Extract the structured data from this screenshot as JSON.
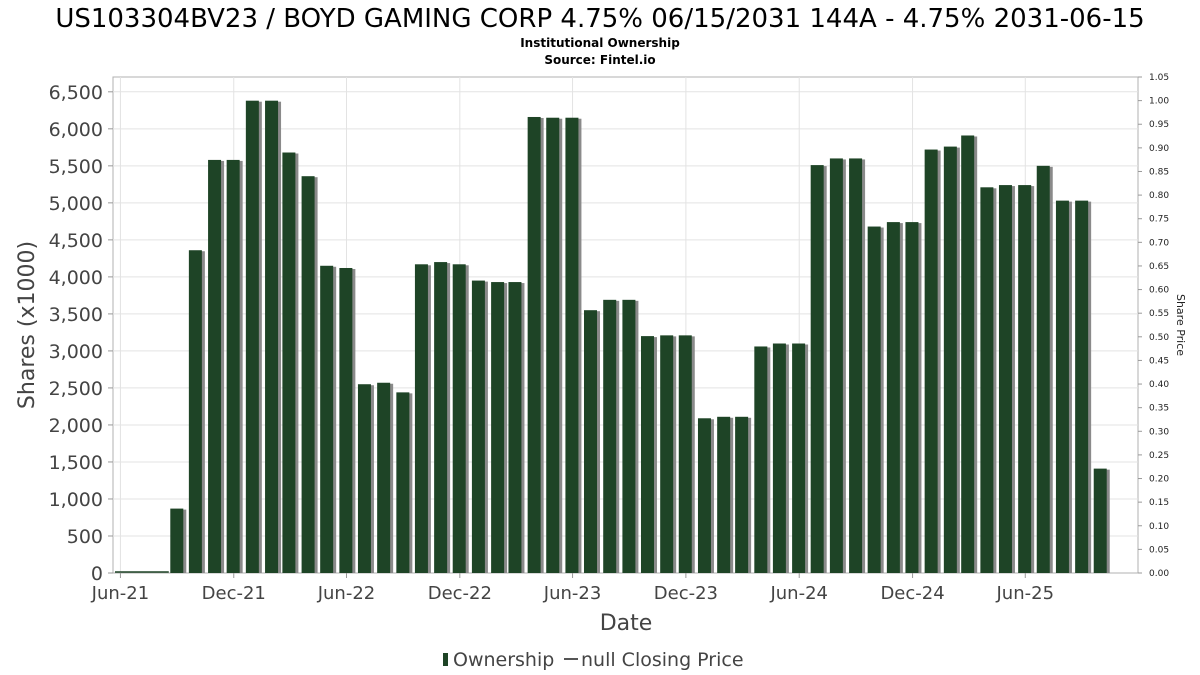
{
  "chart_data": {
    "type": "bar",
    "title": "US103304BV23 / BOYD GAMING CORP 4.75% 06/15/2031 144A - 4.75% 2031-06-15",
    "subtitle": "Institutional Ownership",
    "source": "Source: Fintel.io",
    "xlabel": "Date",
    "ylabel": "Shares (x1000)",
    "y2label": "Share Price",
    "ylim": [
      0,
      6700
    ],
    "y2lim": [
      0,
      1.05
    ],
    "yticks": [
      "0",
      "500",
      "1,000",
      "1,500",
      "2,000",
      "2,500",
      "3,000",
      "3,500",
      "4,000",
      "4,500",
      "5,000",
      "5,500",
      "6,000",
      "6,500"
    ],
    "ytick_values": [
      0,
      500,
      1000,
      1500,
      2000,
      2500,
      3000,
      3500,
      4000,
      4500,
      5000,
      5500,
      6000,
      6500
    ],
    "y2ticks": [
      "0.00",
      "0.05",
      "0.10",
      "0.15",
      "0.20",
      "0.25",
      "0.30",
      "0.35",
      "0.40",
      "0.45",
      "0.50",
      "0.55",
      "0.60",
      "0.65",
      "0.70",
      "0.75",
      "0.80",
      "0.85",
      "0.90",
      "0.95",
      "1.00",
      "1.05"
    ],
    "xlim": [
      "2021-05-20",
      "2025-11-30"
    ],
    "xticks": [
      {
        "label": "Jun-21",
        "date": "2021-06-01"
      },
      {
        "label": "Dec-21",
        "date": "2021-12-01"
      },
      {
        "label": "Jun-22",
        "date": "2022-06-01"
      },
      {
        "label": "Dec-22",
        "date": "2022-12-01"
      },
      {
        "label": "Jun-23",
        "date": "2023-06-01"
      },
      {
        "label": "Dec-23",
        "date": "2023-12-01"
      },
      {
        "label": "Jun-24",
        "date": "2024-06-01"
      },
      {
        "label": "Dec-24",
        "date": "2024-12-01"
      },
      {
        "label": "Jun-25",
        "date": "2025-06-01"
      }
    ],
    "grid": true,
    "legend_position": "bottom",
    "series": [
      {
        "name": "Ownership",
        "color": "#1e4426",
        "shadow_color": "#8a8a8a",
        "points": [
          {
            "x": "2021-08-31",
            "y": 870
          },
          {
            "x": "2021-09-30",
            "y": 4360
          },
          {
            "x": "2021-10-31",
            "y": 5580
          },
          {
            "x": "2021-11-30",
            "y": 5580
          },
          {
            "x": "2021-12-31",
            "y": 6380
          },
          {
            "x": "2022-01-31",
            "y": 6380
          },
          {
            "x": "2022-02-28",
            "y": 5680
          },
          {
            "x": "2022-03-31",
            "y": 5360
          },
          {
            "x": "2022-04-30",
            "y": 4150
          },
          {
            "x": "2022-05-31",
            "y": 4120
          },
          {
            "x": "2022-06-30",
            "y": 2550
          },
          {
            "x": "2022-07-31",
            "y": 2570
          },
          {
            "x": "2022-08-31",
            "y": 2440
          },
          {
            "x": "2022-09-30",
            "y": 4170
          },
          {
            "x": "2022-10-31",
            "y": 4200
          },
          {
            "x": "2022-11-30",
            "y": 4170
          },
          {
            "x": "2022-12-31",
            "y": 3950
          },
          {
            "x": "2023-01-31",
            "y": 3930
          },
          {
            "x": "2023-02-28",
            "y": 3930
          },
          {
            "x": "2023-03-31",
            "y": 6160
          },
          {
            "x": "2023-04-30",
            "y": 6150
          },
          {
            "x": "2023-05-31",
            "y": 6150
          },
          {
            "x": "2023-06-30",
            "y": 3550
          },
          {
            "x": "2023-07-31",
            "y": 3690
          },
          {
            "x": "2023-08-31",
            "y": 3690
          },
          {
            "x": "2023-09-30",
            "y": 3200
          },
          {
            "x": "2023-10-31",
            "y": 3210
          },
          {
            "x": "2023-11-30",
            "y": 3210
          },
          {
            "x": "2023-12-31",
            "y": 2090
          },
          {
            "x": "2024-01-31",
            "y": 2110
          },
          {
            "x": "2024-02-29",
            "y": 2110
          },
          {
            "x": "2024-03-31",
            "y": 3060
          },
          {
            "x": "2024-04-30",
            "y": 3100
          },
          {
            "x": "2024-05-31",
            "y": 3100
          },
          {
            "x": "2024-06-30",
            "y": 5510
          },
          {
            "x": "2024-07-31",
            "y": 5600
          },
          {
            "x": "2024-08-31",
            "y": 5600
          },
          {
            "x": "2024-09-30",
            "y": 4680
          },
          {
            "x": "2024-10-31",
            "y": 4740
          },
          {
            "x": "2024-11-30",
            "y": 4740
          },
          {
            "x": "2024-12-31",
            "y": 5720
          },
          {
            "x": "2025-01-31",
            "y": 5760
          },
          {
            "x": "2025-02-28",
            "y": 5910
          },
          {
            "x": "2025-03-31",
            "y": 5210
          },
          {
            "x": "2025-04-30",
            "y": 5240
          },
          {
            "x": "2025-05-31",
            "y": 5240
          },
          {
            "x": "2025-06-30",
            "y": 5500
          },
          {
            "x": "2025-07-31",
            "y": 5030
          },
          {
            "x": "2025-08-31",
            "y": 5030
          },
          {
            "x": "2025-09-30",
            "y": 1410
          }
        ]
      },
      {
        "name": "null Closing Price",
        "color": "#555555",
        "points": []
      }
    ]
  }
}
